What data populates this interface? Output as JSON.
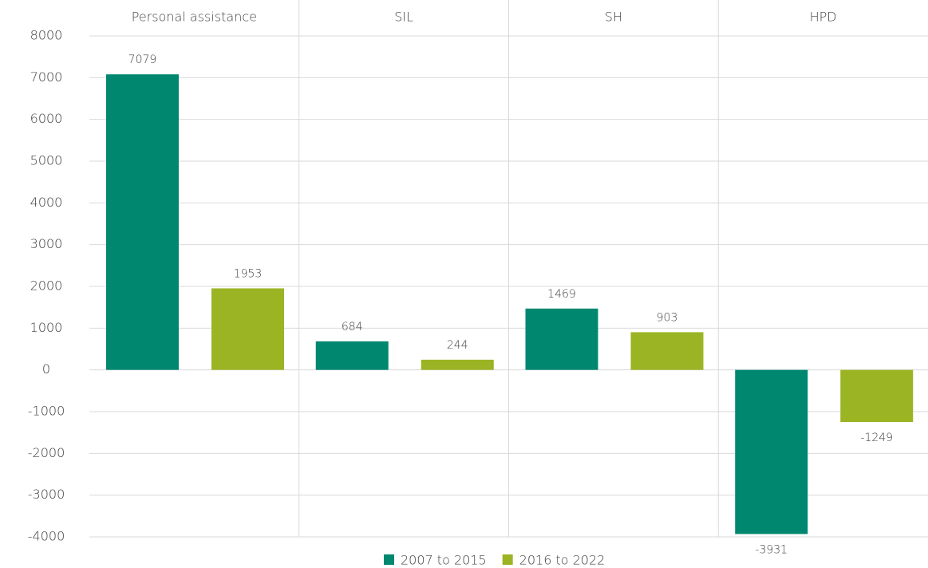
{
  "chart_data": {
    "type": "bar",
    "categories": [
      "Personal assistance",
      "SIL",
      "SH",
      "HPD"
    ],
    "series": [
      {
        "name": "2007 to 2015",
        "color": "#00876f",
        "values": [
          7079,
          684,
          1469,
          -3931
        ]
      },
      {
        "name": "2016 to 2022",
        "color": "#9bb424",
        "values": [
          1953,
          244,
          903,
          -1249
        ]
      }
    ],
    "ylim": [
      -4000,
      8000
    ],
    "yticks": [
      -4000,
      -3000,
      -2000,
      -1000,
      0,
      1000,
      2000,
      3000,
      4000,
      5000,
      6000,
      7000,
      8000
    ],
    "grid": true,
    "legend": "bottom"
  }
}
